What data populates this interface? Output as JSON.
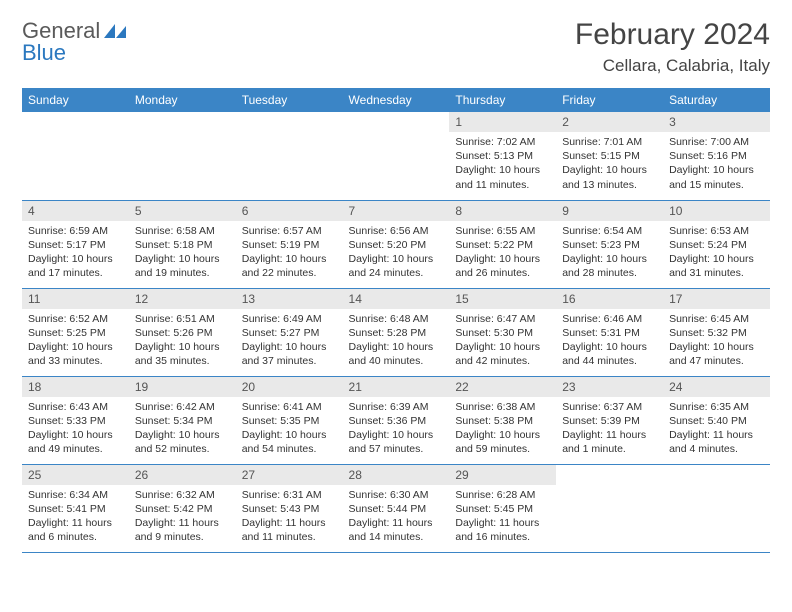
{
  "logo": {
    "part1": "General",
    "part2": "Blue"
  },
  "title": "February 2024",
  "location": "Cellara, Calabria, Italy",
  "colors": {
    "header_bg": "#3b85c6",
    "header_text": "#ffffff",
    "daynum_bg": "#e9e9e9",
    "border": "#3b85c6",
    "logo_gray": "#5a5a5a",
    "logo_blue": "#2b78bf"
  },
  "weekdays": [
    "Sunday",
    "Monday",
    "Tuesday",
    "Wednesday",
    "Thursday",
    "Friday",
    "Saturday"
  ],
  "weeks": [
    [
      {
        "empty": true
      },
      {
        "empty": true
      },
      {
        "empty": true
      },
      {
        "empty": true
      },
      {
        "num": "1",
        "sunrise": "Sunrise: 7:02 AM",
        "sunset": "Sunset: 5:13 PM",
        "daylight": "Daylight: 10 hours and 11 minutes."
      },
      {
        "num": "2",
        "sunrise": "Sunrise: 7:01 AM",
        "sunset": "Sunset: 5:15 PM",
        "daylight": "Daylight: 10 hours and 13 minutes."
      },
      {
        "num": "3",
        "sunrise": "Sunrise: 7:00 AM",
        "sunset": "Sunset: 5:16 PM",
        "daylight": "Daylight: 10 hours and 15 minutes."
      }
    ],
    [
      {
        "num": "4",
        "sunrise": "Sunrise: 6:59 AM",
        "sunset": "Sunset: 5:17 PM",
        "daylight": "Daylight: 10 hours and 17 minutes."
      },
      {
        "num": "5",
        "sunrise": "Sunrise: 6:58 AM",
        "sunset": "Sunset: 5:18 PM",
        "daylight": "Daylight: 10 hours and 19 minutes."
      },
      {
        "num": "6",
        "sunrise": "Sunrise: 6:57 AM",
        "sunset": "Sunset: 5:19 PM",
        "daylight": "Daylight: 10 hours and 22 minutes."
      },
      {
        "num": "7",
        "sunrise": "Sunrise: 6:56 AM",
        "sunset": "Sunset: 5:20 PM",
        "daylight": "Daylight: 10 hours and 24 minutes."
      },
      {
        "num": "8",
        "sunrise": "Sunrise: 6:55 AM",
        "sunset": "Sunset: 5:22 PM",
        "daylight": "Daylight: 10 hours and 26 minutes."
      },
      {
        "num": "9",
        "sunrise": "Sunrise: 6:54 AM",
        "sunset": "Sunset: 5:23 PM",
        "daylight": "Daylight: 10 hours and 28 minutes."
      },
      {
        "num": "10",
        "sunrise": "Sunrise: 6:53 AM",
        "sunset": "Sunset: 5:24 PM",
        "daylight": "Daylight: 10 hours and 31 minutes."
      }
    ],
    [
      {
        "num": "11",
        "sunrise": "Sunrise: 6:52 AM",
        "sunset": "Sunset: 5:25 PM",
        "daylight": "Daylight: 10 hours and 33 minutes."
      },
      {
        "num": "12",
        "sunrise": "Sunrise: 6:51 AM",
        "sunset": "Sunset: 5:26 PM",
        "daylight": "Daylight: 10 hours and 35 minutes."
      },
      {
        "num": "13",
        "sunrise": "Sunrise: 6:49 AM",
        "sunset": "Sunset: 5:27 PM",
        "daylight": "Daylight: 10 hours and 37 minutes."
      },
      {
        "num": "14",
        "sunrise": "Sunrise: 6:48 AM",
        "sunset": "Sunset: 5:28 PM",
        "daylight": "Daylight: 10 hours and 40 minutes."
      },
      {
        "num": "15",
        "sunrise": "Sunrise: 6:47 AM",
        "sunset": "Sunset: 5:30 PM",
        "daylight": "Daylight: 10 hours and 42 minutes."
      },
      {
        "num": "16",
        "sunrise": "Sunrise: 6:46 AM",
        "sunset": "Sunset: 5:31 PM",
        "daylight": "Daylight: 10 hours and 44 minutes."
      },
      {
        "num": "17",
        "sunrise": "Sunrise: 6:45 AM",
        "sunset": "Sunset: 5:32 PM",
        "daylight": "Daylight: 10 hours and 47 minutes."
      }
    ],
    [
      {
        "num": "18",
        "sunrise": "Sunrise: 6:43 AM",
        "sunset": "Sunset: 5:33 PM",
        "daylight": "Daylight: 10 hours and 49 minutes."
      },
      {
        "num": "19",
        "sunrise": "Sunrise: 6:42 AM",
        "sunset": "Sunset: 5:34 PM",
        "daylight": "Daylight: 10 hours and 52 minutes."
      },
      {
        "num": "20",
        "sunrise": "Sunrise: 6:41 AM",
        "sunset": "Sunset: 5:35 PM",
        "daylight": "Daylight: 10 hours and 54 minutes."
      },
      {
        "num": "21",
        "sunrise": "Sunrise: 6:39 AM",
        "sunset": "Sunset: 5:36 PM",
        "daylight": "Daylight: 10 hours and 57 minutes."
      },
      {
        "num": "22",
        "sunrise": "Sunrise: 6:38 AM",
        "sunset": "Sunset: 5:38 PM",
        "daylight": "Daylight: 10 hours and 59 minutes."
      },
      {
        "num": "23",
        "sunrise": "Sunrise: 6:37 AM",
        "sunset": "Sunset: 5:39 PM",
        "daylight": "Daylight: 11 hours and 1 minute."
      },
      {
        "num": "24",
        "sunrise": "Sunrise: 6:35 AM",
        "sunset": "Sunset: 5:40 PM",
        "daylight": "Daylight: 11 hours and 4 minutes."
      }
    ],
    [
      {
        "num": "25",
        "sunrise": "Sunrise: 6:34 AM",
        "sunset": "Sunset: 5:41 PM",
        "daylight": "Daylight: 11 hours and 6 minutes."
      },
      {
        "num": "26",
        "sunrise": "Sunrise: 6:32 AM",
        "sunset": "Sunset: 5:42 PM",
        "daylight": "Daylight: 11 hours and 9 minutes."
      },
      {
        "num": "27",
        "sunrise": "Sunrise: 6:31 AM",
        "sunset": "Sunset: 5:43 PM",
        "daylight": "Daylight: 11 hours and 11 minutes."
      },
      {
        "num": "28",
        "sunrise": "Sunrise: 6:30 AM",
        "sunset": "Sunset: 5:44 PM",
        "daylight": "Daylight: 11 hours and 14 minutes."
      },
      {
        "num": "29",
        "sunrise": "Sunrise: 6:28 AM",
        "sunset": "Sunset: 5:45 PM",
        "daylight": "Daylight: 11 hours and 16 minutes."
      },
      {
        "empty": true
      },
      {
        "empty": true
      }
    ]
  ]
}
